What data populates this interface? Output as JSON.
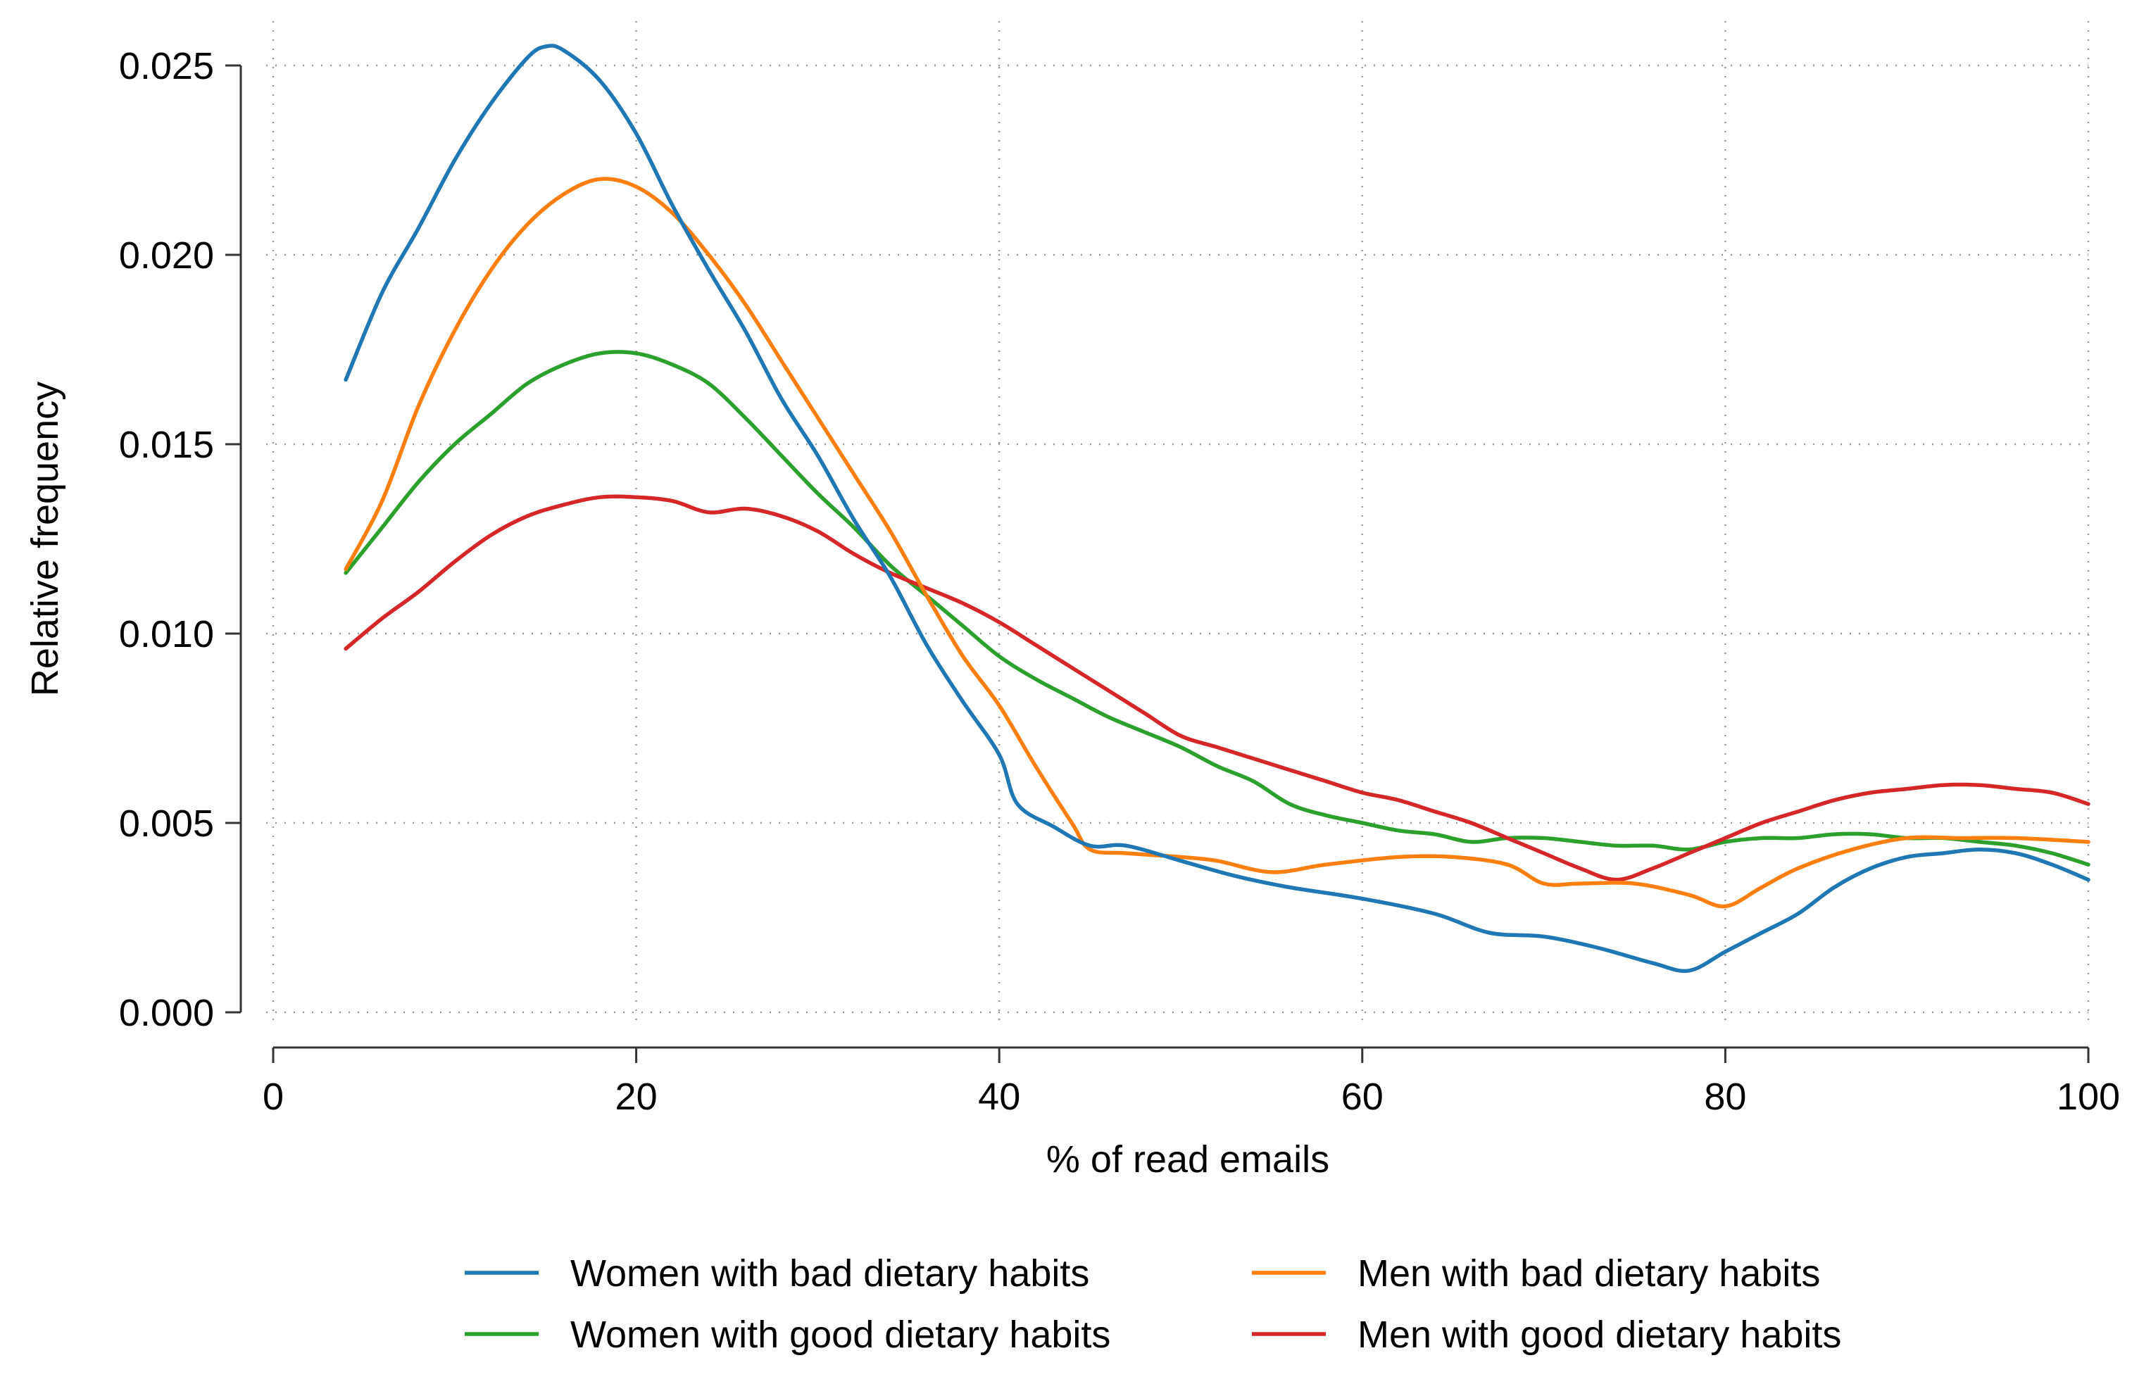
{
  "chart_data": {
    "type": "line",
    "title": "",
    "xlabel": "% of read emails",
    "ylabel": "Relative frequency",
    "xlim": [
      0,
      100
    ],
    "ylim": [
      0,
      0.025
    ],
    "xticks": [
      0,
      20,
      40,
      60,
      80,
      100
    ],
    "xtick_labels": [
      "0",
      "20",
      "40",
      "60",
      "80",
      "100"
    ],
    "yticks": [
      0,
      0.005,
      0.01,
      0.015,
      0.02,
      0.025
    ],
    "ytick_labels": [
      "0.000",
      "0.005",
      "0.010",
      "0.015",
      "0.020",
      "0.025"
    ],
    "grid": true,
    "legend_position": "bottom",
    "series": [
      {
        "name": "Women with bad dietary habits",
        "color": "#1f77b4",
        "points": [
          [
            4,
            0.0167
          ],
          [
            6,
            0.019
          ],
          [
            8,
            0.0207
          ],
          [
            10,
            0.0225
          ],
          [
            12,
            0.024
          ],
          [
            14,
            0.0252
          ],
          [
            15,
            0.0255
          ],
          [
            16,
            0.0254
          ],
          [
            18,
            0.0246
          ],
          [
            20,
            0.0232
          ],
          [
            22,
            0.0213
          ],
          [
            24,
            0.0196
          ],
          [
            26,
            0.018
          ],
          [
            28,
            0.0162
          ],
          [
            30,
            0.0147
          ],
          [
            32,
            0.013
          ],
          [
            34,
            0.0115
          ],
          [
            36,
            0.0097
          ],
          [
            38,
            0.0082
          ],
          [
            40,
            0.0068
          ],
          [
            41,
            0.0055
          ],
          [
            43,
            0.0049
          ],
          [
            45,
            0.0044
          ],
          [
            47,
            0.0044
          ],
          [
            50,
            0.004
          ],
          [
            53,
            0.0036
          ],
          [
            56,
            0.0033
          ],
          [
            60,
            0.003
          ],
          [
            64,
            0.0026
          ],
          [
            67,
            0.0021
          ],
          [
            70,
            0.002
          ],
          [
            73,
            0.0017
          ],
          [
            76,
            0.0013
          ],
          [
            78,
            0.0011
          ],
          [
            80,
            0.0016
          ],
          [
            82,
            0.0021
          ],
          [
            84,
            0.0026
          ],
          [
            86,
            0.0033
          ],
          [
            88,
            0.0038
          ],
          [
            90,
            0.0041
          ],
          [
            92,
            0.0042
          ],
          [
            94,
            0.0043
          ],
          [
            96,
            0.0042
          ],
          [
            98,
            0.0039
          ],
          [
            100,
            0.0035
          ]
        ]
      },
      {
        "name": "Men with bad dietary habits",
        "color": "#ff7f0e",
        "points": [
          [
            4,
            0.0117
          ],
          [
            6,
            0.0135
          ],
          [
            8,
            0.016
          ],
          [
            10,
            0.018
          ],
          [
            12,
            0.0196
          ],
          [
            14,
            0.0208
          ],
          [
            16,
            0.0216
          ],
          [
            18,
            0.022
          ],
          [
            20,
            0.0218
          ],
          [
            22,
            0.0211
          ],
          [
            24,
            0.02
          ],
          [
            26,
            0.0187
          ],
          [
            28,
            0.0172
          ],
          [
            30,
            0.0157
          ],
          [
            32,
            0.0142
          ],
          [
            34,
            0.0127
          ],
          [
            36,
            0.011
          ],
          [
            38,
            0.0094
          ],
          [
            40,
            0.0081
          ],
          [
            42,
            0.0065
          ],
          [
            44,
            0.005
          ],
          [
            45,
            0.0043
          ],
          [
            47,
            0.0042
          ],
          [
            50,
            0.0041
          ],
          [
            52,
            0.004
          ],
          [
            55,
            0.0037
          ],
          [
            58,
            0.0039
          ],
          [
            62,
            0.0041
          ],
          [
            65,
            0.0041
          ],
          [
            68,
            0.0039
          ],
          [
            70,
            0.0034
          ],
          [
            72,
            0.0034
          ],
          [
            75,
            0.0034
          ],
          [
            78,
            0.0031
          ],
          [
            80,
            0.0028
          ],
          [
            82,
            0.0033
          ],
          [
            84,
            0.0038
          ],
          [
            87,
            0.0043
          ],
          [
            90,
            0.0046
          ],
          [
            93,
            0.0046
          ],
          [
            96,
            0.0046
          ],
          [
            100,
            0.0045
          ]
        ]
      },
      {
        "name": "Women with good dietary habits",
        "color": "#2ca02c",
        "points": [
          [
            4,
            0.0116
          ],
          [
            6,
            0.0128
          ],
          [
            8,
            0.014
          ],
          [
            10,
            0.015
          ],
          [
            12,
            0.0158
          ],
          [
            14,
            0.0166
          ],
          [
            16,
            0.0171
          ],
          [
            18,
            0.0174
          ],
          [
            20,
            0.0174
          ],
          [
            22,
            0.0171
          ],
          [
            24,
            0.0166
          ],
          [
            26,
            0.0157
          ],
          [
            28,
            0.0147
          ],
          [
            30,
            0.0137
          ],
          [
            32,
            0.0128
          ],
          [
            34,
            0.0118
          ],
          [
            36,
            0.011
          ],
          [
            38,
            0.0102
          ],
          [
            40,
            0.0094
          ],
          [
            42,
            0.0088
          ],
          [
            44,
            0.0083
          ],
          [
            46,
            0.0078
          ],
          [
            48,
            0.0074
          ],
          [
            50,
            0.007
          ],
          [
            52,
            0.0065
          ],
          [
            54,
            0.0061
          ],
          [
            56,
            0.0055
          ],
          [
            58,
            0.0052
          ],
          [
            60,
            0.005
          ],
          [
            62,
            0.0048
          ],
          [
            64,
            0.0047
          ],
          [
            66,
            0.0045
          ],
          [
            68,
            0.0046
          ],
          [
            70,
            0.0046
          ],
          [
            72,
            0.0045
          ],
          [
            74,
            0.0044
          ],
          [
            76,
            0.0044
          ],
          [
            78,
            0.0043
          ],
          [
            80,
            0.0045
          ],
          [
            82,
            0.0046
          ],
          [
            84,
            0.0046
          ],
          [
            86,
            0.0047
          ],
          [
            88,
            0.0047
          ],
          [
            90,
            0.0046
          ],
          [
            92,
            0.0046
          ],
          [
            94,
            0.0045
          ],
          [
            96,
            0.0044
          ],
          [
            98,
            0.0042
          ],
          [
            100,
            0.0039
          ]
        ]
      },
      {
        "name": "Men with good dietary habits",
        "color": "#d62728",
        "points": [
          [
            4,
            0.0096
          ],
          [
            6,
            0.0104
          ],
          [
            8,
            0.0111
          ],
          [
            10,
            0.0119
          ],
          [
            12,
            0.0126
          ],
          [
            14,
            0.0131
          ],
          [
            16,
            0.0134
          ],
          [
            18,
            0.0136
          ],
          [
            20,
            0.0136
          ],
          [
            22,
            0.0135
          ],
          [
            24,
            0.0132
          ],
          [
            26,
            0.0133
          ],
          [
            28,
            0.0131
          ],
          [
            30,
            0.0127
          ],
          [
            32,
            0.0121
          ],
          [
            34,
            0.0116
          ],
          [
            36,
            0.0112
          ],
          [
            38,
            0.0108
          ],
          [
            40,
            0.0103
          ],
          [
            42,
            0.0097
          ],
          [
            44,
            0.0091
          ],
          [
            46,
            0.0085
          ],
          [
            48,
            0.0079
          ],
          [
            50,
            0.0073
          ],
          [
            52,
            0.007
          ],
          [
            54,
            0.0067
          ],
          [
            56,
            0.0064
          ],
          [
            58,
            0.0061
          ],
          [
            60,
            0.0058
          ],
          [
            62,
            0.0056
          ],
          [
            64,
            0.0053
          ],
          [
            66,
            0.005
          ],
          [
            68,
            0.0046
          ],
          [
            70,
            0.0042
          ],
          [
            72,
            0.0038
          ],
          [
            74,
            0.0035
          ],
          [
            76,
            0.0038
          ],
          [
            78,
            0.0042
          ],
          [
            80,
            0.0046
          ],
          [
            82,
            0.005
          ],
          [
            84,
            0.0053
          ],
          [
            86,
            0.0056
          ],
          [
            88,
            0.0058
          ],
          [
            90,
            0.0059
          ],
          [
            92,
            0.006
          ],
          [
            94,
            0.006
          ],
          [
            96,
            0.0059
          ],
          [
            98,
            0.0058
          ],
          [
            100,
            0.0055
          ]
        ]
      }
    ]
  }
}
